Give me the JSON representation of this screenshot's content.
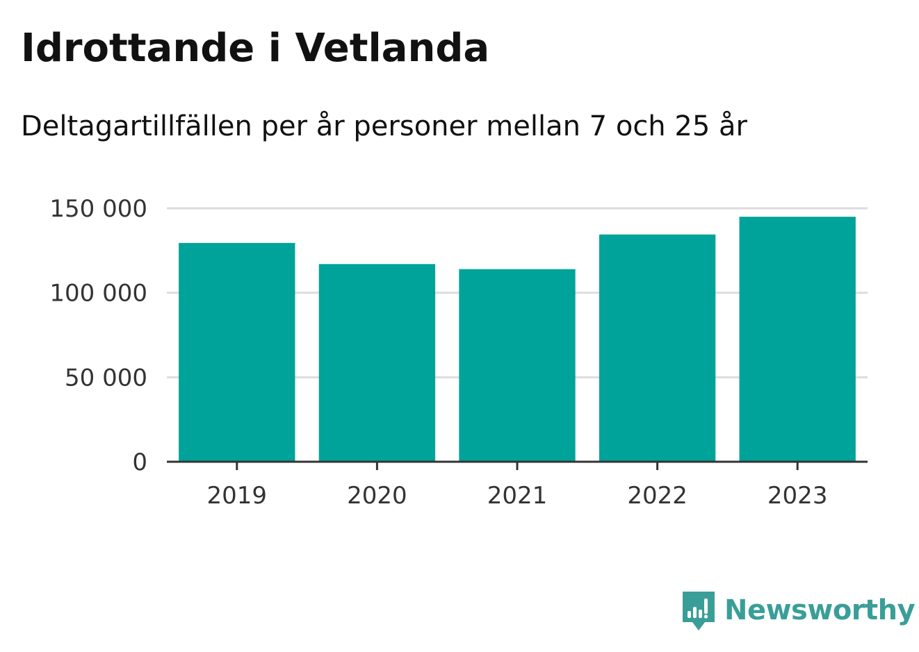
{
  "header": {
    "title": "Idrottande i Vetlanda",
    "subtitle": "Deltagartillfällen per år personer mellan 7 och 25 år"
  },
  "brand": {
    "name": "Newsworthy",
    "icon": "newsworthy-logo-icon",
    "color": "#3a9e98"
  },
  "chart_data": {
    "type": "bar",
    "title": "Idrottande i Vetlanda",
    "subtitle": "Deltagartillfällen per år personer mellan 7 och 25 år",
    "xlabel": "",
    "ylabel": "",
    "categories": [
      "2019",
      "2020",
      "2021",
      "2022",
      "2023"
    ],
    "values": [
      129500,
      117000,
      114000,
      134500,
      145000
    ],
    "ylim": [
      0,
      150000
    ],
    "yticks": [
      0,
      50000,
      100000,
      150000
    ],
    "ytick_labels": [
      "0",
      "50 000",
      "100 000",
      "150 000"
    ],
    "grid": true,
    "legend": "none",
    "bar_color": "#00a39a",
    "grid_color": "#dddddd",
    "axis_color": "#333333"
  }
}
